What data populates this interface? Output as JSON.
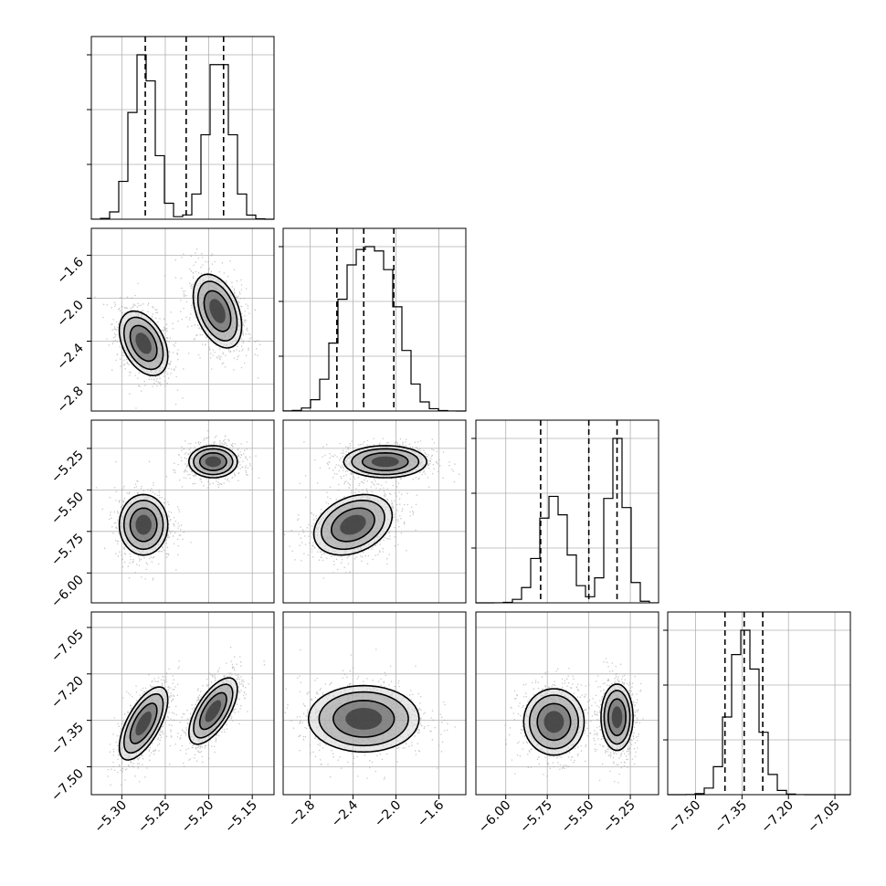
{
  "chart_data": {
    "type": "corner",
    "title": "",
    "grid": true,
    "params": [
      {
        "name": "",
        "range": [
          -5.335,
          -5.125
        ],
        "ticks": [
          -5.3,
          -5.25,
          -5.2,
          -5.15
        ],
        "tick_labels": [
          "−5.30",
          "−5.25",
          "−5.20",
          "−5.15"
        ],
        "quantiles": [
          -5.273,
          -5.226,
          -5.183
        ],
        "modes": [
          {
            "mean": -5.275,
            "sd": 0.0135,
            "w": 0.5
          },
          {
            "mean": -5.188,
            "sd": 0.0135,
            "w": 0.5
          }
        ]
      },
      {
        "name": "",
        "range": [
          -3.05,
          -1.35
        ],
        "ticks": [
          -2.8,
          -2.4,
          -2.0,
          -1.6
        ],
        "tick_labels": [
          "−2.8",
          "−2.4",
          "−2.0",
          "−1.6"
        ],
        "quantiles": [
          -2.55,
          -2.3,
          -2.02
        ],
        "modes": [
          {
            "mean": -2.4,
            "sd": 0.16,
            "w": 0.5
          },
          {
            "mean": -2.1,
            "sd": 0.16,
            "w": 0.5
          }
        ]
      },
      {
        "name": "",
        "range": [
          -6.18,
          -5.08
        ],
        "ticks": [
          -6.0,
          -5.75,
          -5.5,
          -5.25
        ],
        "tick_labels": [
          "−6.00",
          "−5.75",
          "−5.50",
          "−5.25"
        ],
        "quantiles": [
          -5.79,
          -5.5,
          -5.33
        ],
        "modes": [
          {
            "mean": -5.71,
            "sd": 0.085,
            "w": 0.5
          },
          {
            "mean": -5.33,
            "sd": 0.055,
            "w": 0.5
          }
        ]
      },
      {
        "name": "",
        "range": [
          -7.59,
          -7.0
        ],
        "ticks": [
          -7.5,
          -7.35,
          -7.2,
          -7.05
        ],
        "tick_labels": [
          "−7.50",
          "−7.35",
          "−7.20",
          "−7.05"
        ],
        "quantiles": [
          -7.405,
          -7.343,
          -7.283
        ],
        "modes": [
          {
            "mean": -7.343,
            "sd": 0.045,
            "w": 1.0
          }
        ]
      }
    ],
    "panels_2d": [
      {
        "x": 0,
        "y": 1,
        "clusters": [
          {
            "cx": -5.275,
            "cy": -2.42,
            "sx": 0.013,
            "sy": 0.14,
            "rho": -0.4
          },
          {
            "cx": -5.19,
            "cy": -2.12,
            "sx": 0.013,
            "sy": 0.16,
            "rho": -0.4
          }
        ]
      },
      {
        "x": 0,
        "y": 2,
        "clusters": [
          {
            "cx": -5.275,
            "cy": -5.71,
            "sx": 0.013,
            "sy": 0.085,
            "rho": 0.0
          },
          {
            "cx": -5.195,
            "cy": -5.33,
            "sx": 0.013,
            "sy": 0.045,
            "rho": 0.0
          }
        ]
      },
      {
        "x": 0,
        "y": 3,
        "clusters": [
          {
            "cx": -5.275,
            "cy": -7.36,
            "sx": 0.013,
            "sy": 0.055,
            "rho": 0.65
          },
          {
            "cx": -5.195,
            "cy": -7.32,
            "sx": 0.013,
            "sy": 0.05,
            "rho": 0.65
          }
        ]
      },
      {
        "x": 1,
        "y": 2,
        "clusters": [
          {
            "cx": -2.4,
            "cy": -5.71,
            "sx": 0.17,
            "sy": 0.085,
            "rho": 0.3
          },
          {
            "cx": -2.1,
            "cy": -5.33,
            "sx": 0.18,
            "sy": 0.045,
            "rho": 0.0
          }
        ]
      },
      {
        "x": 1,
        "y": 3,
        "clusters": [
          {
            "cx": -2.3,
            "cy": -7.345,
            "sx": 0.24,
            "sy": 0.05,
            "rho": 0.0
          }
        ]
      },
      {
        "x": 2,
        "y": 3,
        "clusters": [
          {
            "cx": -5.71,
            "cy": -7.355,
            "sx": 0.085,
            "sy": 0.05,
            "rho": 0.0
          },
          {
            "cx": -5.33,
            "cy": -7.34,
            "sx": 0.045,
            "sy": 0.05,
            "rho": 0.0
          }
        ]
      }
    ]
  }
}
